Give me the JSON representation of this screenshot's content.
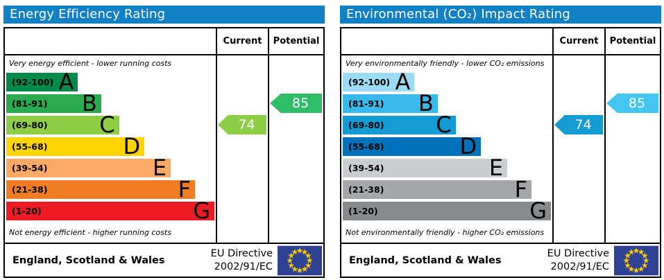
{
  "colors": {
    "header_bg": "#1180c5",
    "border": "#000000",
    "flag_bg": "#2e4193",
    "flag_stars": "#ffcc00"
  },
  "chart_data": [
    {
      "type": "bar",
      "title": "Energy Efficiency Rating",
      "categories": [
        "A (92-100)",
        "B (81-91)",
        "C (69-80)",
        "D (55-68)",
        "E (39-54)",
        "F (21-38)",
        "G (1-20)"
      ],
      "band_colors": [
        "#008a4c",
        "#2aa94f",
        "#8dce46",
        "#fed402",
        "#fbaa65",
        "#f07d23",
        "#ed1c24"
      ],
      "band_bar_widths_pct": [
        34,
        45,
        53.5,
        65.5,
        78,
        89.5,
        98.7
      ],
      "scale_range": [
        1,
        100
      ],
      "columns": [
        "Current",
        "Potential"
      ],
      "current": {
        "value": 74,
        "band": "C"
      },
      "potential": {
        "value": 85,
        "band": "B"
      },
      "annotations": [
        "Very energy efficient - lower running costs",
        "Not energy efficient - higher running costs"
      ],
      "footer": "England, Scotland & Wales — EU Directive 2002/91/EC"
    },
    {
      "type": "bar",
      "title": "Environmental (CO₂) Impact Rating",
      "categories": [
        "A (92-100)",
        "B (81-91)",
        "C (69-80)",
        "D (55-68)",
        "E (39-54)",
        "F (21-38)",
        "G (1-20)"
      ],
      "band_colors": [
        "#9bdcf4",
        "#39b8ea",
        "#149bd4",
        "#0072bb",
        "#cbced0",
        "#a4a6a9",
        "#888b8e"
      ],
      "band_bar_widths_pct": [
        34,
        45,
        53.5,
        65.5,
        78,
        89.5,
        98.7
      ],
      "scale_range": [
        1,
        100
      ],
      "columns": [
        "Current",
        "Potential"
      ],
      "current": {
        "value": 74,
        "band": "C"
      },
      "potential": {
        "value": 85,
        "band": "B"
      },
      "annotations": [
        "Very environmentally friendly - lower CO₂ emissions",
        "Not environmentally friendly - higher CO₂ emissions"
      ],
      "footer": "England, Scotland & Wales — EU Directive 2002/91/EC"
    }
  ],
  "panels": [
    {
      "title": "Energy Efficiency Rating",
      "columns": {
        "current": "Current",
        "potential": "Potential"
      },
      "top_note": "Very energy efficient - lower running costs",
      "bottom_note": "Not energy efficient - higher running costs",
      "bands": [
        {
          "range": "(92-100)",
          "letter": "A",
          "color": "#008a4c",
          "width_pct": 34
        },
        {
          "range": "(81-91)",
          "letter": "B",
          "color": "#2aa94f",
          "width_pct": 45
        },
        {
          "range": "(69-80)",
          "letter": "C",
          "color": "#8dce46",
          "width_pct": 53.5
        },
        {
          "range": "(55-68)",
          "letter": "D",
          "color": "#fed402",
          "width_pct": 65.5
        },
        {
          "range": "(39-54)",
          "letter": "E",
          "color": "#fbaa65",
          "width_pct": 78
        },
        {
          "range": "(21-38)",
          "letter": "F",
          "color": "#f07d23",
          "width_pct": 89.5
        },
        {
          "range": "(1-20)",
          "letter": "G",
          "color": "#ed1c24",
          "width_pct": 98.7
        }
      ],
      "current": {
        "value": "74",
        "band_index": 2,
        "color": "#8dce46"
      },
      "potential": {
        "value": "85",
        "band_index": 1,
        "color": "#2fbd68"
      },
      "footer": {
        "region": "England, Scotland & Wales",
        "directive_line1": "EU Directive",
        "directive_line2": "2002/91/EC"
      }
    },
    {
      "title": "Environmental (CO₂) Impact Rating",
      "columns": {
        "current": "Current",
        "potential": "Potential"
      },
      "top_note": "Very environmentally friendly - lower CO₂ emissions",
      "bottom_note": "Not environmentally friendly - higher CO₂ emissions",
      "bands": [
        {
          "range": "(92-100)",
          "letter": "A",
          "color": "#9bdcf4",
          "width_pct": 34
        },
        {
          "range": "(81-91)",
          "letter": "B",
          "color": "#39b8ea",
          "width_pct": 45
        },
        {
          "range": "(69-80)",
          "letter": "C",
          "color": "#149bd4",
          "width_pct": 53.5
        },
        {
          "range": "(55-68)",
          "letter": "D",
          "color": "#0072bb",
          "width_pct": 65.5
        },
        {
          "range": "(39-54)",
          "letter": "E",
          "color": "#cbced0",
          "width_pct": 78
        },
        {
          "range": "(21-38)",
          "letter": "F",
          "color": "#a4a6a9",
          "width_pct": 89.5
        },
        {
          "range": "(1-20)",
          "letter": "G",
          "color": "#888b8e",
          "width_pct": 98.7
        }
      ],
      "current": {
        "value": "74",
        "band_index": 2,
        "color": "#149bd4"
      },
      "potential": {
        "value": "85",
        "band_index": 1,
        "color": "#45c6f0"
      },
      "footer": {
        "region": "England, Scotland & Wales",
        "directive_line1": "EU Directive",
        "directive_line2": "2002/91/EC"
      }
    }
  ]
}
